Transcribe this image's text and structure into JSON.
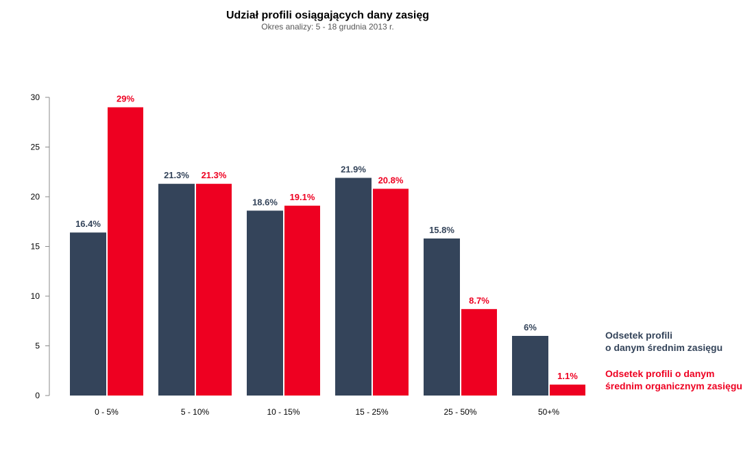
{
  "chart_data": {
    "type": "bar",
    "title": "Udział profili osiągających dany zasięg",
    "subtitle": "Okres analizy: 5 - 18 grudnia 2013 r.",
    "xlabel": "",
    "ylabel": "",
    "ylim": [
      0,
      30
    ],
    "yticks": [
      0,
      5,
      10,
      15,
      20,
      25,
      30
    ],
    "grid": false,
    "legend_position": "right",
    "categories": [
      "0 - 5%",
      "5 - 10%",
      "10 - 15%",
      "15 - 25%",
      "25 - 50%",
      "50+%"
    ],
    "series": [
      {
        "name": "Odsetek profili\no danym średnim zasięgu",
        "color": "#34445a",
        "values": [
          16.4,
          21.3,
          18.6,
          21.9,
          15.8,
          6
        ],
        "labels": [
          "16.4%",
          "21.3%",
          "18.6%",
          "21.9%",
          "15.8%",
          "6%"
        ]
      },
      {
        "name": "Odsetek profili o danym\nśrednim organicznym zasięgu",
        "color": "#ee0021",
        "values": [
          29,
          21.3,
          19.1,
          20.8,
          8.7,
          1.1
        ],
        "labels": [
          "29%",
          "21.3%",
          "19.1%",
          "20.8%",
          "8.7%",
          "1.1%"
        ]
      }
    ]
  }
}
